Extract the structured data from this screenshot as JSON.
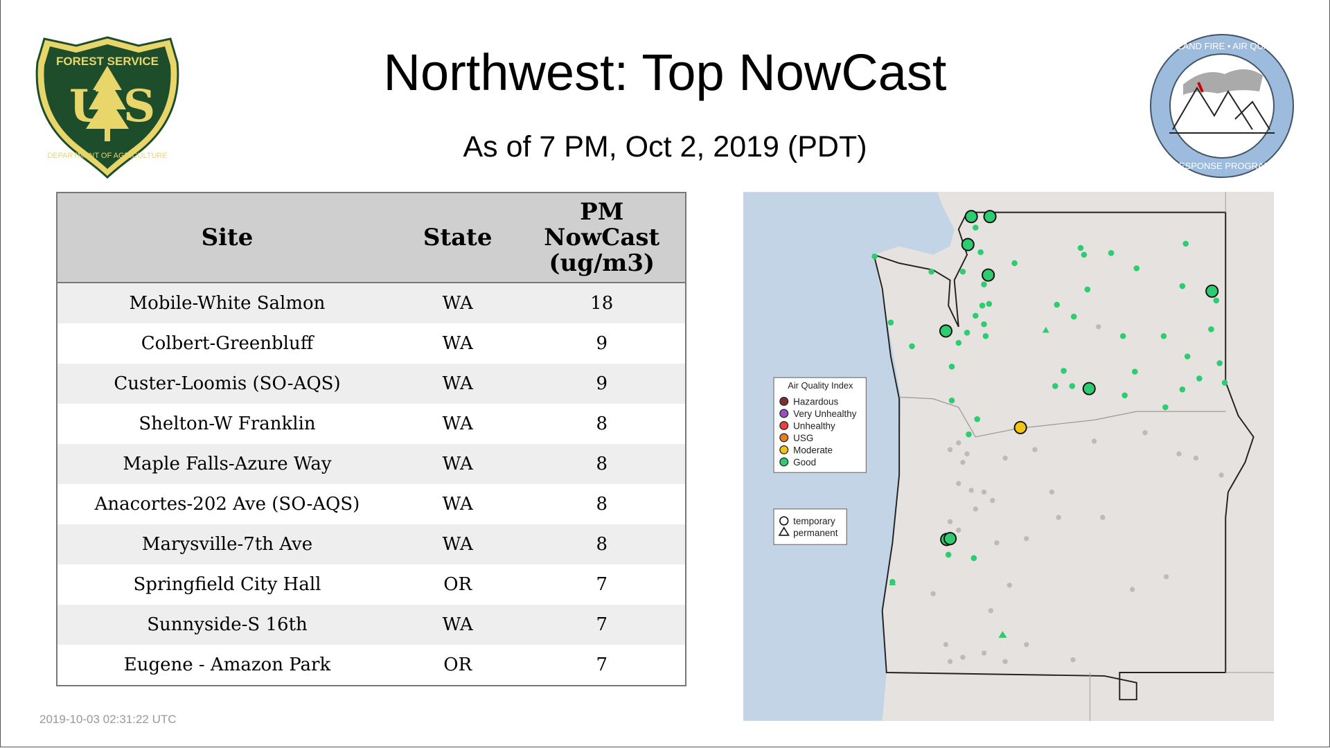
{
  "header": {
    "title": "Northwest: Top NowCast",
    "subtitle": "As of  7 PM, Oct  2, 2019 (PDT)"
  },
  "logos": {
    "left": "FOREST SERVICE U S DEPARTMENT OF AGRICULTURE",
    "right": "WILDLAND FIRE AIR QUALITY RESPONSE PROGRAM"
  },
  "table": {
    "headers": [
      "Site",
      "State",
      "PM NowCast (ug/m3)"
    ],
    "rows": [
      [
        "Mobile-White Salmon",
        "WA",
        "18"
      ],
      [
        "Colbert-Greenbluff",
        "WA",
        "9"
      ],
      [
        "Custer-Loomis (SO-AQS)",
        "WA",
        "9"
      ],
      [
        "Shelton-W Franklin",
        "WA",
        "8"
      ],
      [
        "Maple Falls-Azure Way",
        "WA",
        "8"
      ],
      [
        "Anacortes-202 Ave (SO-AQS)",
        "WA",
        "8"
      ],
      [
        "Marysville-7th Ave",
        "WA",
        "8"
      ],
      [
        "Springfield City Hall",
        "OR",
        "7"
      ],
      [
        "Sunnyside-S 16th",
        "WA",
        "7"
      ],
      [
        "Eugene - Amazon Park",
        "OR",
        "7"
      ]
    ]
  },
  "map": {
    "legend_title": "Air Quality Index",
    "legend": [
      {
        "label": "Hazardous",
        "color": "#7e2f2f"
      },
      {
        "label": "Very Unhealthy",
        "color": "#9b4fc0"
      },
      {
        "label": "Unhealthy",
        "color": "#e8423a"
      },
      {
        "label": "USG",
        "color": "#e87e22"
      },
      {
        "label": "Moderate",
        "color": "#f2c514"
      },
      {
        "label": "Good",
        "color": "#2ecc71"
      }
    ],
    "shape_legend": [
      {
        "label": "temporary",
        "shape": "circle"
      },
      {
        "label": "permanent",
        "shape": "triangle"
      }
    ],
    "ocean_color": "#c2d4e6",
    "land_color": "#e6e2df"
  },
  "timestamp": "2019-10-03 02:31:22 UTC"
}
